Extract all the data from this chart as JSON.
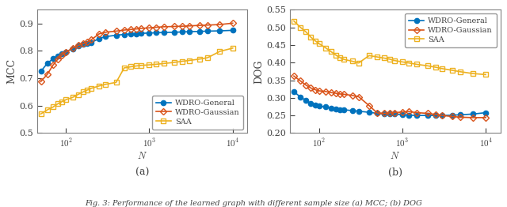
{
  "N_values": [
    50,
    60,
    70,
    80,
    90,
    100,
    120,
    140,
    160,
    180,
    200,
    250,
    300,
    400,
    500,
    600,
    700,
    800,
    1000,
    1200,
    1500,
    2000,
    2500,
    3000,
    4000,
    5000,
    7000,
    10000
  ],
  "mcc_general": [
    0.725,
    0.755,
    0.771,
    0.782,
    0.79,
    0.796,
    0.808,
    0.818,
    0.824,
    0.828,
    0.83,
    0.845,
    0.852,
    0.857,
    0.86,
    0.862,
    0.863,
    0.864,
    0.865,
    0.866,
    0.867,
    0.868,
    0.869,
    0.87,
    0.871,
    0.872,
    0.873,
    0.875
  ],
  "mcc_gaussian": [
    0.688,
    0.715,
    0.748,
    0.77,
    0.785,
    0.795,
    0.81,
    0.82,
    0.826,
    0.832,
    0.84,
    0.862,
    0.868,
    0.872,
    0.876,
    0.878,
    0.88,
    0.882,
    0.884,
    0.886,
    0.888,
    0.889,
    0.89,
    0.891,
    0.893,
    0.894,
    0.896,
    0.901
  ],
  "mcc_saa": [
    0.57,
    0.585,
    0.595,
    0.607,
    0.615,
    0.622,
    0.63,
    0.641,
    0.65,
    0.657,
    0.663,
    0.672,
    0.678,
    0.685,
    0.738,
    0.742,
    0.745,
    0.747,
    0.749,
    0.751,
    0.754,
    0.758,
    0.762,
    0.765,
    0.77,
    0.775,
    0.798,
    0.81
  ],
  "dog_general": [
    0.318,
    0.302,
    0.293,
    0.284,
    0.279,
    0.277,
    0.274,
    0.271,
    0.269,
    0.267,
    0.266,
    0.264,
    0.262,
    0.259,
    0.256,
    0.254,
    0.254,
    0.254,
    0.252,
    0.251,
    0.25,
    0.25,
    0.25,
    0.25,
    0.251,
    0.252,
    0.254,
    0.258
  ],
  "dog_gaussian": [
    0.362,
    0.348,
    0.336,
    0.328,
    0.323,
    0.32,
    0.318,
    0.315,
    0.313,
    0.311,
    0.31,
    0.307,
    0.303,
    0.278,
    0.257,
    0.256,
    0.257,
    0.258,
    0.26,
    0.261,
    0.258,
    0.256,
    0.253,
    0.25,
    0.247,
    0.245,
    0.244,
    0.244
  ],
  "dog_saa": [
    0.518,
    0.5,
    0.487,
    0.472,
    0.462,
    0.454,
    0.442,
    0.431,
    0.421,
    0.414,
    0.409,
    0.404,
    0.399,
    0.42,
    0.416,
    0.413,
    0.41,
    0.406,
    0.402,
    0.399,
    0.395,
    0.391,
    0.387,
    0.383,
    0.378,
    0.374,
    0.369,
    0.366
  ],
  "color_general": "#0072BD",
  "color_gaussian": "#D95319",
  "color_saa": "#EDB120",
  "mcc_ylim": [
    0.5,
    0.95
  ],
  "mcc_yticks": [
    0.5,
    0.6,
    0.7,
    0.8,
    0.9
  ],
  "dog_ylim": [
    0.2,
    0.55
  ],
  "dog_yticks": [
    0.2,
    0.25,
    0.3,
    0.35,
    0.4,
    0.45,
    0.5,
    0.55
  ],
  "xlim": [
    45,
    15000
  ],
  "xticks": [
    100,
    1000,
    10000
  ],
  "xticklabels": [
    "10^2",
    "10^3",
    "10^4"
  ],
  "ylabel_left": "MCC",
  "ylabel_right": "DOG",
  "label_general": "WDRO-General",
  "label_gaussian": "WDRO-Gaussian",
  "label_saa": "SAA",
  "caption_a": "(a)",
  "caption_b": "(b)",
  "fig_caption": "Fig. 3: Performance of the learned graph with different sample size (a) MCC; (b) DOG"
}
